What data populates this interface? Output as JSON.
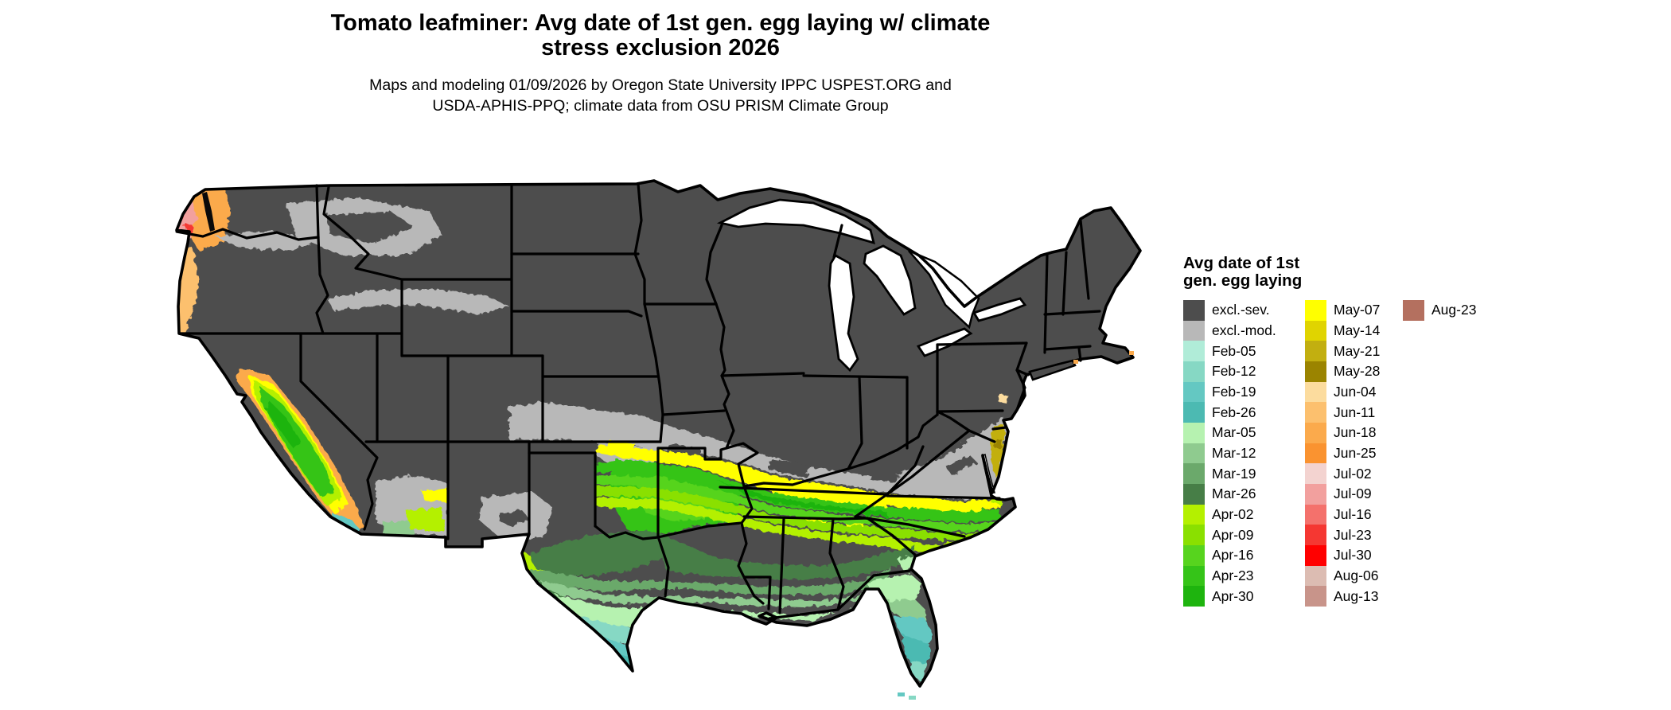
{
  "title": {
    "line1": "Tomato leafminer: Avg date of 1st gen. egg laying w/ climate",
    "line2": "stress exclusion 2026"
  },
  "subtitle": {
    "line1": "Maps and modeling 01/09/2026 by Oregon State University IPPC USPEST.ORG and",
    "line2": "USDA-APHIS-PPQ; climate data from OSU PRISM Climate Group"
  },
  "legend": {
    "title_line1": "Avg date of 1st",
    "title_line2": "gen. egg laying",
    "columns": [
      {
        "entries": [
          {
            "label": "excl.-sev.",
            "color": "#4d4d4d"
          },
          {
            "label": "excl.-mod.",
            "color": "#b8b8b8"
          },
          {
            "label": "Feb-05",
            "color": "#b0ecd8"
          },
          {
            "label": "Feb-12",
            "color": "#86d8c4"
          },
          {
            "label": "Feb-19",
            "color": "#64c8c2"
          },
          {
            "label": "Feb-26",
            "color": "#4cbab2"
          },
          {
            "label": "Mar-05",
            "color": "#b6f2b0"
          },
          {
            "label": "Mar-12",
            "color": "#8fcb8f"
          },
          {
            "label": "Mar-19",
            "color": "#6ba96b"
          },
          {
            "label": "Mar-26",
            "color": "#477e47"
          },
          {
            "label": "Apr-02",
            "color": "#b4f000"
          },
          {
            "label": "Apr-09",
            "color": "#8ae000"
          },
          {
            "label": "Apr-16",
            "color": "#57d41e"
          },
          {
            "label": "Apr-23",
            "color": "#35c418"
          },
          {
            "label": "Apr-30",
            "color": "#1eb40e"
          }
        ]
      },
      {
        "entries": [
          {
            "label": "May-07",
            "color": "#ffff00"
          },
          {
            "label": "May-14",
            "color": "#e0d400"
          },
          {
            "label": "May-21",
            "color": "#c2af10"
          },
          {
            "label": "May-28",
            "color": "#9b8400"
          },
          {
            "label": "Jun-04",
            "color": "#fcdc9e"
          },
          {
            "label": "Jun-11",
            "color": "#fcc06e"
          },
          {
            "label": "Jun-18",
            "color": "#fbaa4c"
          },
          {
            "label": "Jun-25",
            "color": "#fa9330"
          },
          {
            "label": "Jul-02",
            "color": "#f3d3d0"
          },
          {
            "label": "Jul-09",
            "color": "#f2a09e"
          },
          {
            "label": "Jul-16",
            "color": "#f4716c"
          },
          {
            "label": "Jul-23",
            "color": "#f53732"
          },
          {
            "label": "Jul-30",
            "color": "#ff0000"
          },
          {
            "label": "Aug-06",
            "color": "#dcbcb2"
          },
          {
            "label": "Aug-13",
            "color": "#c8948a"
          }
        ]
      },
      {
        "entries": [
          {
            "label": "Aug-23",
            "color": "#b4705f"
          }
        ]
      }
    ]
  },
  "map": {
    "base_color": "#4d4d4d",
    "border_color": "#000000",
    "water_color": "#ffffff",
    "regions": [
      {
        "area": "Northern US, Rockies, NE states, Nevada interior",
        "value": "excl.-sev."
      },
      {
        "area": "Transition band S-Kansas / Missouri / Kentucky / Virginia, E-Washington basin, NM & W-Texas patches",
        "value": "excl.-mod."
      },
      {
        "area": "Band along Tennessee / NC-VA border, S-Missouri, N-Arkansas edge",
        "value": "May-07"
      },
      {
        "area": "Arkansas, W-Tennessee, N-Mississippi / Alabama, NC piedmont",
        "value": "Apr-16 to Apr-30"
      },
      {
        "area": "Central Texas, Mississippi, Alabama, Georgia, SC coast",
        "value": "Apr-02 to Apr-09"
      },
      {
        "area": "Gulf interior band",
        "value": "Mar-19 to Mar-26"
      },
      {
        "area": "Gulf coast and north Florida",
        "value": "Mar-05 to Mar-12"
      },
      {
        "area": "South Texas tip and central/south Florida peninsula",
        "value": "Feb-05 to Feb-26"
      },
      {
        "area": "Washington / Oregon / N-California coast",
        "value": "Jun-11 to Jun-25"
      },
      {
        "area": "NW Washington coast",
        "value": "Jul-09 to Jul-23"
      },
      {
        "area": "California Central Valley (ringed by Apr-02, May-07, Jun-18)",
        "value": "Apr-16 to Apr-30"
      },
      {
        "area": "Delmarva peninsula",
        "value": "May-21 to May-28"
      }
    ]
  }
}
